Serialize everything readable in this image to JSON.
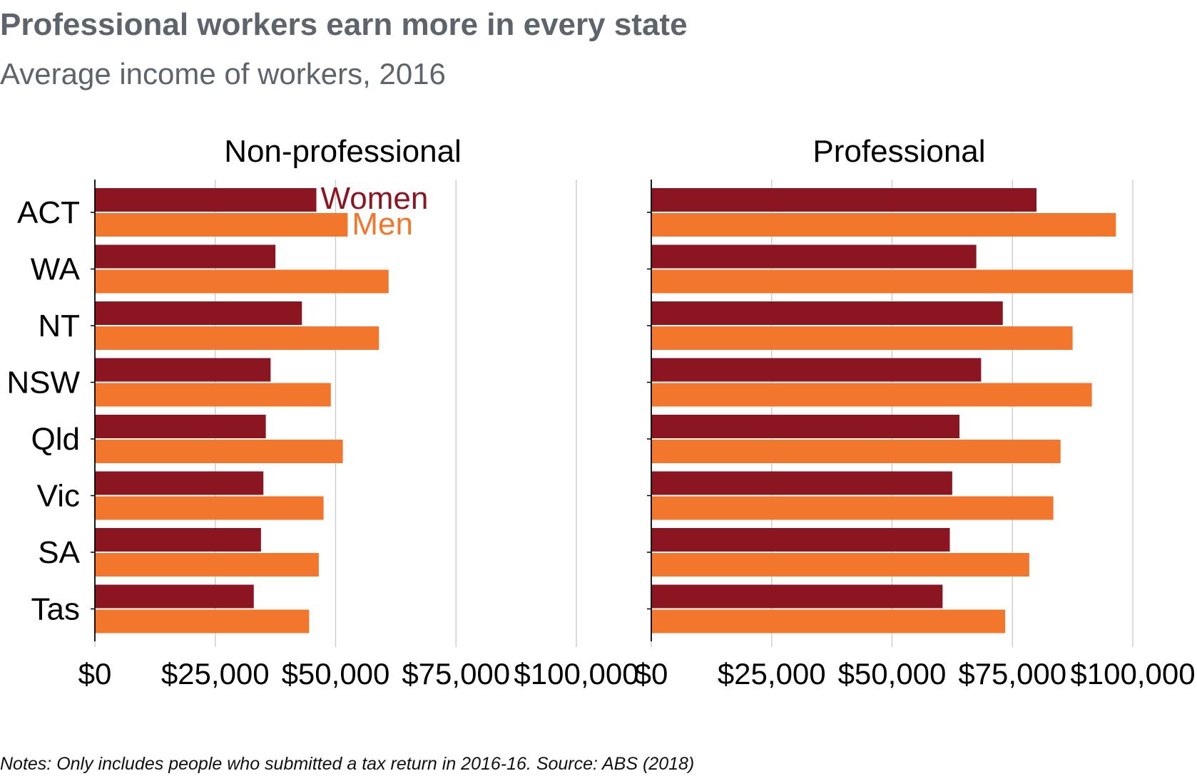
{
  "title": "Professional workers earn more in every state",
  "subtitle": "Average income of workers, 2016",
  "note": "Notes: Only includes people who submitted a tax return in 2016-16. Source: ABS (2018)",
  "colors": {
    "women": "#8b1520",
    "men": "#f2772c",
    "grid": "#c8c8c8",
    "axis": "#000000"
  },
  "chart_data": {
    "type": "bar",
    "orientation": "horizontal",
    "categories": [
      "ACT",
      "WA",
      "NT",
      "NSW",
      "Qld",
      "Vic",
      "SA",
      "Tas"
    ],
    "legend": {
      "women": "Women",
      "men": "Men"
    },
    "xlim": [
      0,
      100000
    ],
    "xticks": [
      0,
      25000,
      50000,
      75000,
      100000
    ],
    "xtick_labels": [
      "$0",
      "$25,000",
      "$50,000",
      "$75,000",
      "$100,000"
    ],
    "grid": true,
    "panels": [
      {
        "title": "Non-professional",
        "series": [
          {
            "name": "Women",
            "values": [
              46000,
              37500,
              43000,
              36500,
              35500,
              35000,
              34500,
              33000
            ]
          },
          {
            "name": "Men",
            "values": [
              52500,
              61000,
              59000,
              49000,
              51500,
              47500,
              46500,
              44500
            ]
          }
        ]
      },
      {
        "title": "Professional",
        "series": [
          {
            "name": "Women",
            "values": [
              80000,
              67500,
              73000,
              68500,
              64000,
              62500,
              62000,
              60500
            ]
          },
          {
            "name": "Men",
            "values": [
              96500,
              100000,
              87500,
              91500,
              85000,
              83500,
              78500,
              73500
            ]
          }
        ]
      }
    ]
  }
}
